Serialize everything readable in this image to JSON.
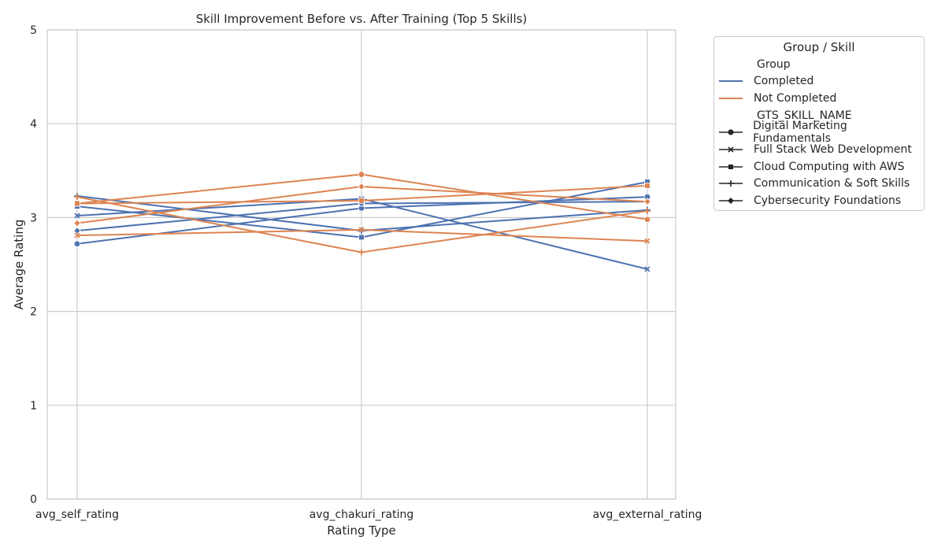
{
  "chart_data": {
    "type": "line",
    "title": "Skill Improvement Before vs. After Training (Top 5 Skills)",
    "xlabel": "Rating Type",
    "ylabel": "Average Rating",
    "categories": [
      "avg_self_rating",
      "avg_chakuri_rating",
      "avg_external_rating"
    ],
    "ylim": [
      0,
      5
    ],
    "yticks": [
      "0",
      "1",
      "2",
      "3",
      "4",
      "5"
    ],
    "grid": true,
    "legend": {
      "title": "Group / Skill",
      "placement": "outside-right",
      "group_header": "Group",
      "groups": [
        {
          "name": "Completed",
          "color": "#4c72b0"
        },
        {
          "name": "Not Completed",
          "color": "#dd8452"
        }
      ],
      "skill_header": "GTS_SKILL_NAME",
      "skills": [
        {
          "name": "Digital Marketing Fundamentals",
          "marker": "circle"
        },
        {
          "name": "Full Stack Web Development",
          "marker": "x"
        },
        {
          "name": "Cloud Computing with AWS",
          "marker": "square"
        },
        {
          "name": "Communication & Soft Skills",
          "marker": "plus"
        },
        {
          "name": "Cybersecurity Foundations",
          "marker": "diamond"
        }
      ]
    },
    "series": [
      {
        "name": "Completed",
        "skill": "Digital Marketing Fundamentals",
        "values": [
          2.72,
          3.1,
          3.22
        ]
      },
      {
        "name": "Completed",
        "skill": "Full Stack Web Development",
        "values": [
          3.02,
          3.2,
          2.45
        ]
      },
      {
        "name": "Completed",
        "skill": "Cloud Computing with AWS",
        "values": [
          3.12,
          2.79,
          3.38
        ]
      },
      {
        "name": "Completed",
        "skill": "Communication & Soft Skills",
        "values": [
          3.23,
          2.86,
          3.08
        ]
      },
      {
        "name": "Completed",
        "skill": "Cybersecurity Foundations",
        "values": [
          2.86,
          3.15,
          3.17
        ]
      },
      {
        "name": "Not Completed",
        "skill": "Digital Marketing Fundamentals",
        "values": [
          3.15,
          3.46,
          2.98
        ]
      },
      {
        "name": "Not Completed",
        "skill": "Full Stack Web Development",
        "values": [
          2.81,
          2.87,
          2.75
        ]
      },
      {
        "name": "Not Completed",
        "skill": "Cloud Computing with AWS",
        "values": [
          3.15,
          3.18,
          3.34
        ]
      },
      {
        "name": "Not Completed",
        "skill": "Communication & Soft Skills",
        "values": [
          3.22,
          2.63,
          3.07
        ]
      },
      {
        "name": "Not Completed",
        "skill": "Cybersecurity Foundations",
        "values": [
          2.94,
          3.33,
          3.17
        ]
      }
    ]
  }
}
